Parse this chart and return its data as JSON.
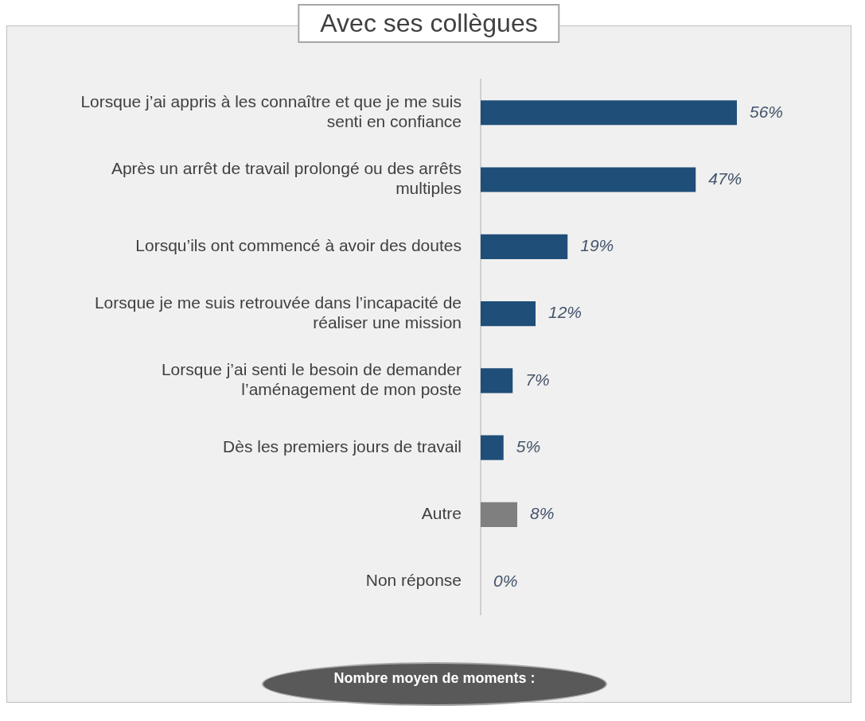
{
  "chart_data": {
    "type": "bar",
    "orientation": "horizontal",
    "title": "Avec ses collègues",
    "categories": [
      "Lorsque j’ai appris à les connaître et que je me suis senti en confiance",
      "Après un arrêt de travail prolongé ou des arrêts multiples",
      "Lorsqu’ils ont commencé à avoir des doutes",
      "Lorsque je me suis retrouvée dans l’incapacité de réaliser une mission",
      "Lorsque j’ai senti le besoin de demander l’aménagement de mon poste",
      "Dès les premiers jours de travail",
      "Autre",
      "Non réponse"
    ],
    "values": [
      56,
      47,
      19,
      12,
      7,
      5,
      8,
      0
    ],
    "colors": [
      "#1f4e79",
      "#1f4e79",
      "#1f4e79",
      "#1f4e79",
      "#1f4e79",
      "#1f4e79",
      "#7f7f7f",
      "#c00000"
    ],
    "value_labels": [
      "56%",
      "47%",
      "19%",
      "12%",
      "7%",
      "5%",
      "8%",
      "0%"
    ],
    "tick_labels": "y",
    "grid": false,
    "legend": false,
    "annotations": [
      "Nombre moyen de moments :"
    ]
  }
}
